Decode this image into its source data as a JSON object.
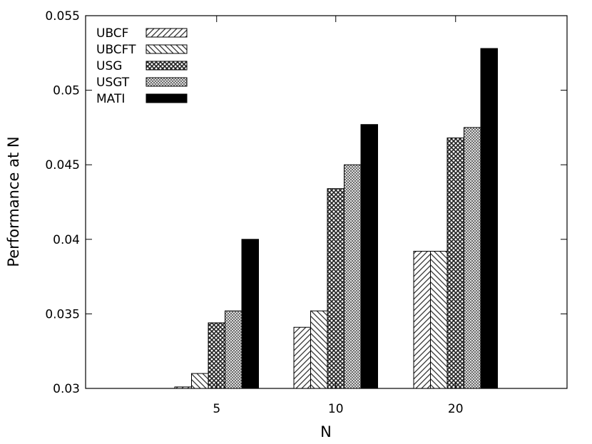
{
  "chart_data": {
    "type": "bar",
    "xlabel": "N",
    "ylabel": "Performance at N",
    "categories": [
      "5",
      "10",
      "20"
    ],
    "ylim": [
      0.03,
      0.055
    ],
    "yticks": [
      "0.03",
      "0.035",
      "0.04",
      "0.045",
      "0.05",
      "0.055"
    ],
    "legend_position": "top-left",
    "series": [
      {
        "name": "UBCF",
        "pattern": "diag-right",
        "values": [
          0.0301,
          0.0341,
          0.0392
        ]
      },
      {
        "name": "UBCFT",
        "pattern": "diag-left",
        "values": [
          0.031,
          0.0352,
          0.0392
        ]
      },
      {
        "name": "USG",
        "pattern": "cross-dark",
        "values": [
          0.0344,
          0.0434,
          0.0468
        ]
      },
      {
        "name": "USGT",
        "pattern": "cross-light",
        "values": [
          0.0352,
          0.045,
          0.0475
        ]
      },
      {
        "name": "MATI",
        "pattern": "solid",
        "values": [
          0.04,
          0.0477,
          0.0528
        ]
      }
    ],
    "grid": false
  }
}
